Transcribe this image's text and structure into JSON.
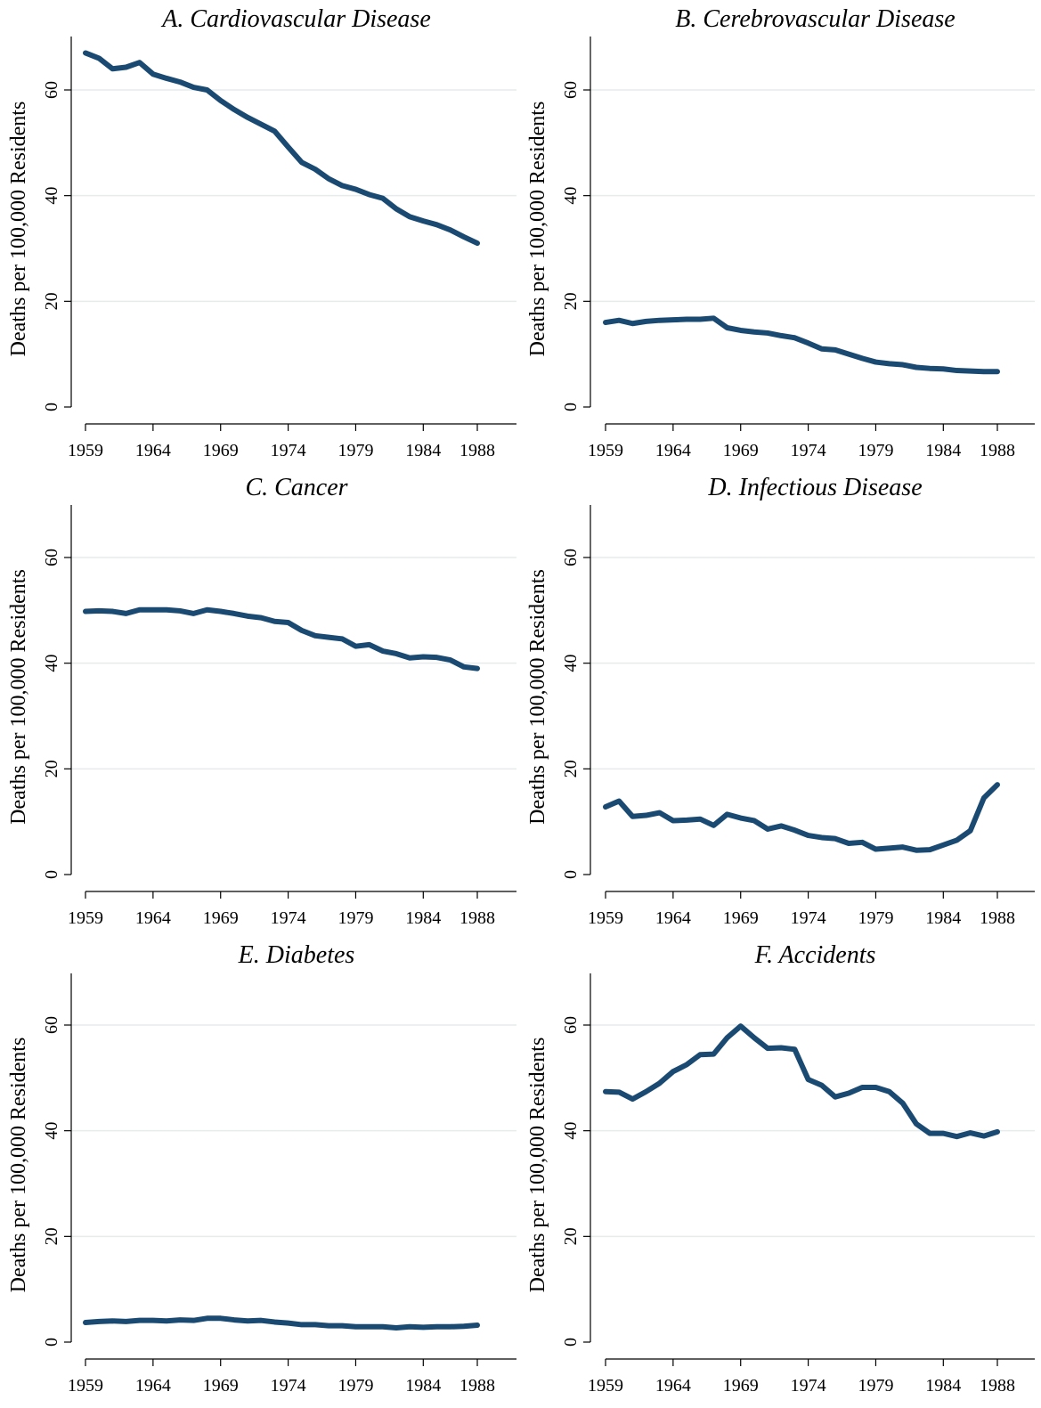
{
  "colors": {
    "series": "#1a4a72",
    "grid": "#e6ecec",
    "axis": "#000000"
  },
  "chart_data": [
    {
      "type": "line",
      "title": "A. Cardiovascular Disease",
      "ylabel": "Deaths per 100,000 Residents",
      "xlabel": "",
      "xticks": [
        "1959",
        "1964",
        "1969",
        "1974",
        "1979",
        "1984",
        "1988"
      ],
      "yticks": [
        "0",
        "20",
        "40",
        "60"
      ],
      "xlim": [
        1959,
        1988
      ],
      "ylim": [
        0,
        70
      ],
      "grid": true,
      "x": [
        1959,
        1960,
        1961,
        1962,
        1963,
        1964,
        1965,
        1966,
        1967,
        1968,
        1969,
        1970,
        1971,
        1972,
        1973,
        1974,
        1975,
        1976,
        1977,
        1978,
        1979,
        1980,
        1981,
        1982,
        1983,
        1984,
        1985,
        1986,
        1987,
        1988
      ],
      "values": [
        67,
        66,
        64,
        64.3,
        65.2,
        63,
        62.2,
        61.5,
        60.5,
        60,
        58,
        56.3,
        54.8,
        53.5,
        52.2,
        49.2,
        46.3,
        45,
        43.2,
        41.9,
        41.2,
        40.2,
        39.5,
        37.5,
        36,
        35.2,
        34.5,
        33.5,
        32.2,
        31
      ]
    },
    {
      "type": "line",
      "title": "B. Cerebrovascular Disease",
      "ylabel": "Deaths per 100,000 Residents",
      "xlabel": "",
      "xticks": [
        "1959",
        "1964",
        "1969",
        "1974",
        "1979",
        "1984",
        "1988"
      ],
      "yticks": [
        "0",
        "20",
        "40",
        "60"
      ],
      "xlim": [
        1959,
        1988
      ],
      "ylim": [
        0,
        70
      ],
      "grid": true,
      "x": [
        1959,
        1960,
        1961,
        1962,
        1963,
        1964,
        1965,
        1966,
        1967,
        1968,
        1969,
        1970,
        1971,
        1972,
        1973,
        1974,
        1975,
        1976,
        1977,
        1978,
        1979,
        1980,
        1981,
        1982,
        1983,
        1984,
        1985,
        1986,
        1987,
        1988
      ],
      "values": [
        16,
        16.4,
        15.8,
        16.2,
        16.4,
        16.5,
        16.6,
        16.6,
        16.8,
        15,
        14.5,
        14.2,
        14,
        13.5,
        13.1,
        12.1,
        11,
        10.8,
        10,
        9.2,
        8.5,
        8.2,
        8,
        7.5,
        7.3,
        7.2,
        6.9,
        6.8,
        6.7,
        6.7
      ]
    },
    {
      "type": "line",
      "title": "C. Cancer",
      "ylabel": "Deaths per 100,000 Residents",
      "xlabel": "",
      "xticks": [
        "1959",
        "1964",
        "1969",
        "1974",
        "1979",
        "1984",
        "1988"
      ],
      "yticks": [
        "0",
        "20",
        "40",
        "60"
      ],
      "xlim": [
        1959,
        1988
      ],
      "ylim": [
        0,
        70
      ],
      "grid": true,
      "x": [
        1959,
        1960,
        1961,
        1962,
        1963,
        1964,
        1965,
        1966,
        1967,
        1968,
        1969,
        1970,
        1971,
        1972,
        1973,
        1974,
        1975,
        1976,
        1977,
        1978,
        1979,
        1980,
        1981,
        1982,
        1983,
        1984,
        1985,
        1986,
        1987,
        1988
      ],
      "values": [
        49.8,
        49.9,
        49.8,
        49.4,
        50.1,
        50.1,
        50.1,
        49.9,
        49.4,
        50.1,
        49.8,
        49.4,
        48.9,
        48.6,
        47.9,
        47.7,
        46.2,
        45.2,
        44.9,
        44.6,
        43.2,
        43.5,
        42.3,
        41.8,
        41,
        41.2,
        41.1,
        40.6,
        39.3,
        39
      ]
    },
    {
      "type": "line",
      "title": "D. Infectious Disease",
      "ylabel": "Deaths per 100,000 Residents",
      "xlabel": "",
      "xticks": [
        "1959",
        "1964",
        "1969",
        "1974",
        "1979",
        "1984",
        "1988"
      ],
      "yticks": [
        "0",
        "20",
        "40",
        "60"
      ],
      "xlim": [
        1959,
        1988
      ],
      "ylim": [
        0,
        70
      ],
      "grid": true,
      "x": [
        1959,
        1960,
        1961,
        1962,
        1963,
        1964,
        1965,
        1966,
        1967,
        1968,
        1969,
        1970,
        1971,
        1972,
        1973,
        1974,
        1975,
        1976,
        1977,
        1978,
        1979,
        1980,
        1981,
        1982,
        1983,
        1984,
        1985,
        1986,
        1987,
        1988
      ],
      "values": [
        12.8,
        13.9,
        11,
        11.2,
        11.7,
        10.2,
        10.3,
        10.5,
        9.3,
        11.4,
        10.7,
        10.2,
        8.6,
        9.2,
        8.4,
        7.4,
        7,
        6.8,
        5.9,
        6.1,
        4.8,
        5,
        5.2,
        4.6,
        4.7,
        5.6,
        6.5,
        8.3,
        14.5,
        17
      ]
    },
    {
      "type": "line",
      "title": "E. Diabetes",
      "ylabel": "Deaths per 100,000 Residents",
      "xlabel": "",
      "xticks": [
        "1959",
        "1964",
        "1969",
        "1974",
        "1979",
        "1984",
        "1988"
      ],
      "yticks": [
        "0",
        "20",
        "40",
        "60"
      ],
      "xlim": [
        1959,
        1988
      ],
      "ylim": [
        0,
        70
      ],
      "grid": true,
      "x": [
        1959,
        1960,
        1961,
        1962,
        1963,
        1964,
        1965,
        1966,
        1967,
        1968,
        1969,
        1970,
        1971,
        1972,
        1973,
        1974,
        1975,
        1976,
        1977,
        1978,
        1979,
        1980,
        1981,
        1982,
        1983,
        1984,
        1985,
        1986,
        1987,
        1988
      ],
      "values": [
        3.7,
        3.9,
        4,
        3.9,
        4.1,
        4.1,
        4,
        4.2,
        4.1,
        4.5,
        4.5,
        4.2,
        4,
        4.1,
        3.8,
        3.6,
        3.3,
        3.3,
        3.1,
        3.1,
        2.9,
        2.9,
        2.9,
        2.7,
        2.9,
        2.8,
        2.9,
        2.9,
        3,
        3.2
      ]
    },
    {
      "type": "line",
      "title": "F. Accidents",
      "ylabel": "Deaths per 100,000 Residents",
      "xlabel": "",
      "xticks": [
        "1959",
        "1964",
        "1969",
        "1974",
        "1979",
        "1984",
        "1988"
      ],
      "yticks": [
        "0",
        "20",
        "40",
        "60"
      ],
      "xlim": [
        1959,
        1988
      ],
      "ylim": [
        0,
        70
      ],
      "grid": true,
      "x": [
        1959,
        1960,
        1961,
        1962,
        1963,
        1964,
        1965,
        1966,
        1967,
        1968,
        1969,
        1970,
        1971,
        1972,
        1973,
        1974,
        1975,
        1976,
        1977,
        1978,
        1979,
        1980,
        1981,
        1982,
        1983,
        1984,
        1985,
        1986,
        1987,
        1988
      ],
      "values": [
        47.4,
        47.3,
        46,
        47.4,
        49,
        51.2,
        52.5,
        54.4,
        54.5,
        57.6,
        59.8,
        57.6,
        55.6,
        55.7,
        55.4,
        49.7,
        48.6,
        46.4,
        47.1,
        48.2,
        48.2,
        47.4,
        45.2,
        41.3,
        39.5,
        39.5,
        38.9,
        39.6,
        39,
        39.8
      ]
    }
  ]
}
